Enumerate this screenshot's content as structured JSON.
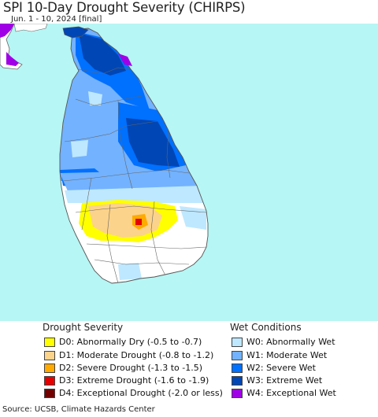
{
  "title": "SPI 10-Day Drought Severity (CHIRPS)",
  "subtitle": "Jun. 1 - 10, 2024 [final]",
  "source": "Source: UCSB, Climate Hazards Center",
  "colors": {
    "sea": "#b6f6f4",
    "land_neutral": "#ffffff",
    "border": "#666666"
  },
  "legend": {
    "drought": {
      "heading": "Drought Severity",
      "items": [
        {
          "label": "D0: Abnormally Dry (-0.5 to -0.7)",
          "color": "#ffff00"
        },
        {
          "label": "D1: Moderate Drought (-0.8 to -1.2)",
          "color": "#fcd38a"
        },
        {
          "label": "D2: Severe Drought (-1.3 to -1.5)",
          "color": "#ffaa00"
        },
        {
          "label": "D3: Extreme Drought (-1.6 to -1.9)",
          "color": "#e60000"
        },
        {
          "label": "D4: Exceptional Drought (-2.0 or less)",
          "color": "#730000"
        }
      ]
    },
    "wet": {
      "heading": "Wet Conditions",
      "items": [
        {
          "label": "W0: Abnormally Wet",
          "color": "#bee8ff"
        },
        {
          "label": "W1: Moderate Wet",
          "color": "#73b2ff"
        },
        {
          "label": "W2: Severe Wet",
          "color": "#0070ff"
        },
        {
          "label": "W3: Extreme Wet",
          "color": "#0046b4"
        },
        {
          "label": "W4: Exceptional Wet",
          "color": "#a000e6"
        }
      ]
    }
  }
}
